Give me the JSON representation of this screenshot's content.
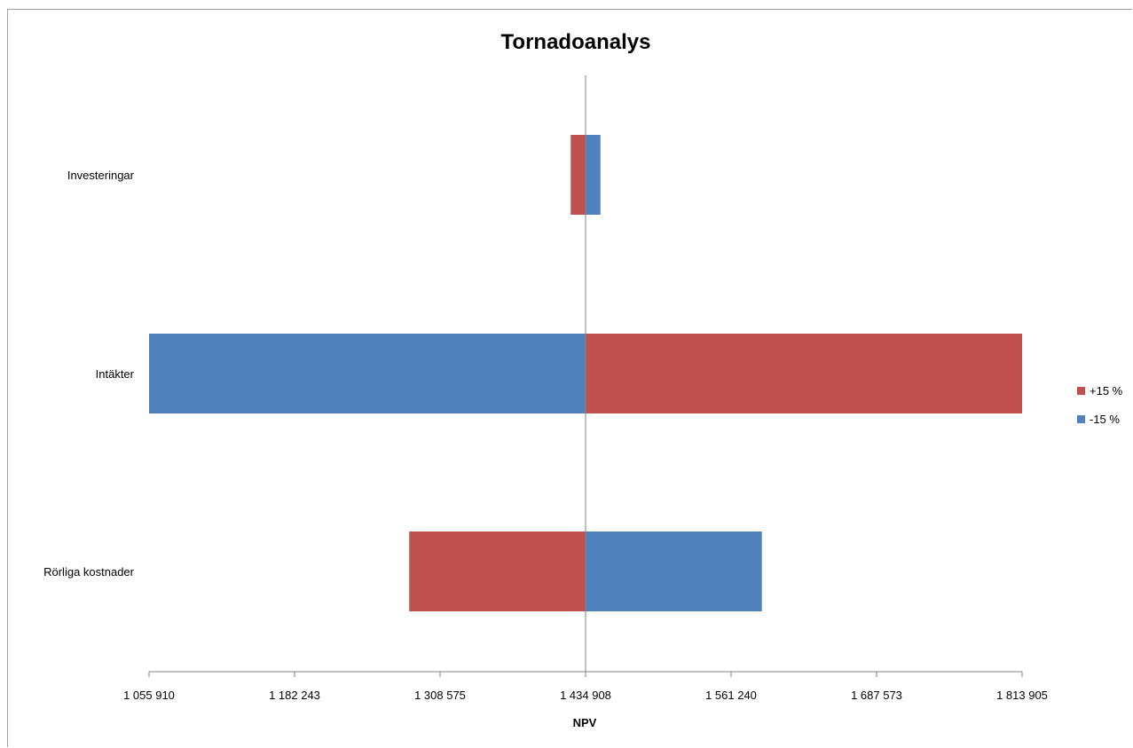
{
  "chart_data": {
    "type": "bar",
    "orientation": "horizontal",
    "variant": "tornado",
    "title": "Tornadoanalys",
    "xlabel": "NPV",
    "ylabel": "",
    "baseline": 1434908,
    "xlim": [
      1055910,
      1813905
    ],
    "xticks": [
      1055910,
      1182243,
      1308575,
      1434908,
      1561240,
      1687573,
      1813905
    ],
    "xtick_labels": [
      "1 055 910",
      "1 182 243",
      "1 308 575",
      "1 434 908",
      "1 561 240",
      "1 687 573",
      "1 813 905"
    ],
    "categories": [
      "Investeringar",
      "Intäkter",
      "Rörliga kostnader"
    ],
    "series": [
      {
        "name": "+15 %",
        "color": "#c0504d",
        "values": [
          1422000,
          1813905,
          1281800
        ]
      },
      {
        "name": "-15 %",
        "color": "#4f81bd",
        "values": [
          1447800,
          1055910,
          1588000
        ]
      }
    ],
    "legend_position": "right",
    "grid": false
  }
}
